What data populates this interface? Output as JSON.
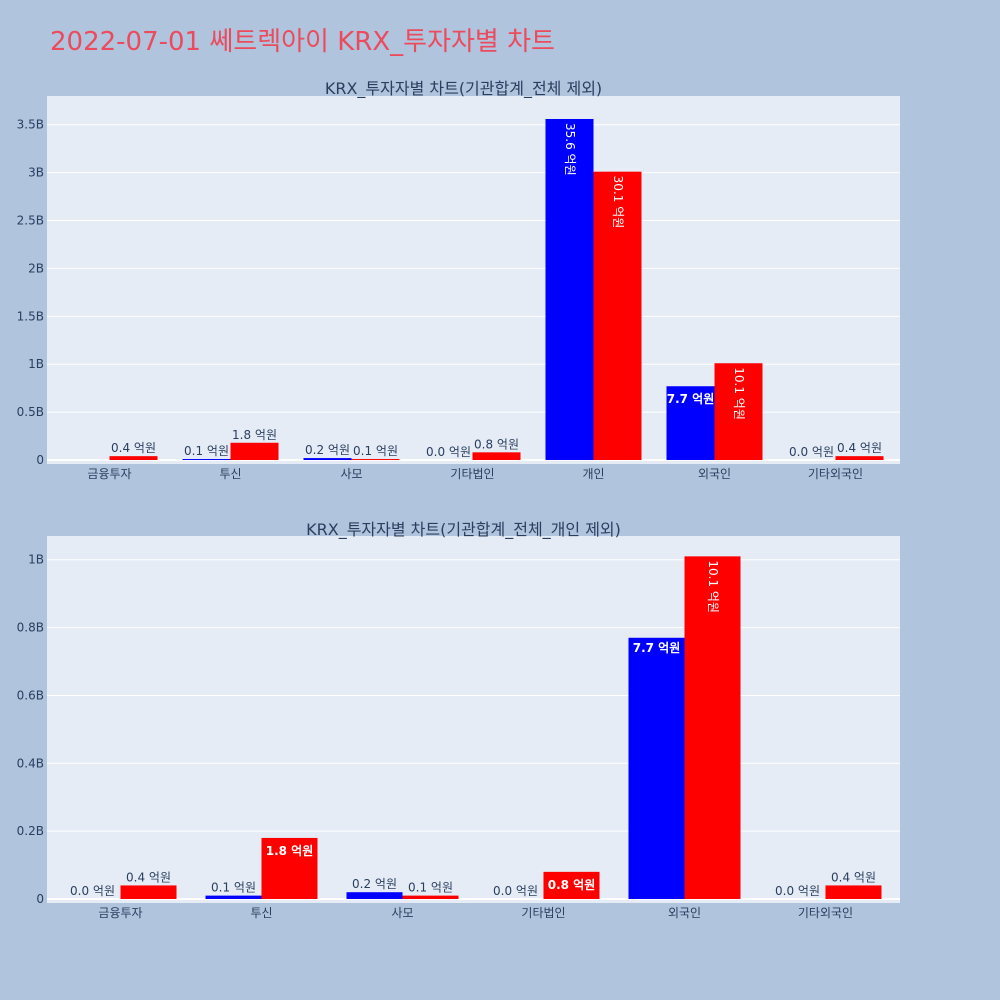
{
  "page": {
    "title": "2022-07-01 쎄트렉아이 KRX_투자자별 차트",
    "title_color": "#ec4b5e",
    "background": "#b0c4de",
    "plot_background": "#e5ecf6"
  },
  "chart_data": [
    {
      "type": "bar",
      "title": "KRX_투자자별 차트(기관합계_전체 제외)",
      "categories": [
        "금융투자",
        "투신",
        "사모",
        "기타법인",
        "개인",
        "외국인",
        "기타외국인"
      ],
      "series": [
        {
          "color": "#0000ff",
          "values": [
            0,
            10000000,
            20000000,
            0,
            3560000000,
            770000000,
            0
          ],
          "labels": [
            "",
            "0.1 억원",
            "0.2 억원",
            "0.0 억원",
            "35.6 억원",
            "7.7 억원",
            "0.0 억원"
          ]
        },
        {
          "color": "#ff0000",
          "values": [
            40000000,
            180000000,
            10000000,
            80000000,
            3010000000,
            1010000000,
            40000000
          ],
          "labels": [
            "0.4 억원",
            "1.8 억원",
            "0.1 억원",
            "0.8 억원",
            "30.1 억원",
            "10.1 억원",
            "0.4 억원"
          ]
        }
      ],
      "ylim": [
        0,
        3800000000
      ],
      "yticks": [
        0,
        500000000,
        1000000000,
        1500000000,
        2000000000,
        2500000000,
        3000000000,
        3500000000
      ],
      "ytick_labels": [
        "0",
        "0.5B",
        "1B",
        "1.5B",
        "2B",
        "2.5B",
        "3B",
        "3.5B"
      ],
      "grid": true,
      "bar_label_position": "auto"
    },
    {
      "type": "bar",
      "title": "KRX_투자자별 차트(기관합계_전체_개인 제외)",
      "categories": [
        "금융투자",
        "투신",
        "사모",
        "기타법인",
        "외국인",
        "기타외국인"
      ],
      "series": [
        {
          "color": "#0000ff",
          "values": [
            0,
            10000000,
            20000000,
            0,
            770000000,
            0
          ],
          "labels": [
            "0.0 억원",
            "0.1 억원",
            "0.2 억원",
            "0.0 억원",
            "7.7 억원",
            "0.0 억원"
          ]
        },
        {
          "color": "#ff0000",
          "values": [
            40000000,
            180000000,
            10000000,
            80000000,
            1010000000,
            40000000
          ],
          "labels": [
            "0.4 억원",
            "1.8 억원",
            "0.1 억원",
            "0.8 억원",
            "10.1 억원",
            "0.4 억원"
          ]
        }
      ],
      "ylim": [
        0,
        1070000000
      ],
      "yticks": [
        0,
        200000000,
        400000000,
        600000000,
        800000000,
        1000000000
      ],
      "ytick_labels": [
        "0",
        "0.2B",
        "0.4B",
        "0.6B",
        "0.8B",
        "1B"
      ],
      "grid": true,
      "bar_label_position": "auto"
    }
  ]
}
